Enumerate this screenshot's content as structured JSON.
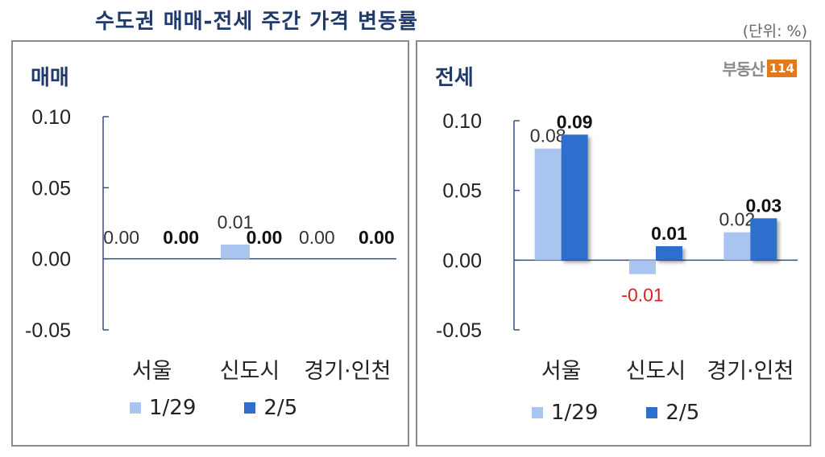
{
  "header": {
    "title": "수도권 매매-전세 주간 가격 변동률",
    "unit": "(단위: %)"
  },
  "logo": {
    "text": "부동산",
    "number": "114"
  },
  "colors": {
    "series1": "#a9c4ef",
    "series2": "#2f6ecc",
    "axis": "#3b4d86",
    "negative": "#e02020",
    "title": "#1f3a6b"
  },
  "chart_data": [
    {
      "type": "bar",
      "title": "매매",
      "categories": [
        "서울",
        "신도시",
        "경기·인천"
      ],
      "series": [
        {
          "name": "1/29",
          "values": [
            0.0,
            0.01,
            0.0
          ],
          "labels": [
            "0.00",
            "0.01",
            "0.00"
          ]
        },
        {
          "name": "2/5",
          "values": [
            0.0,
            0.0,
            0.0
          ],
          "labels": [
            "0.00",
            "0.00",
            "0.00"
          ]
        }
      ],
      "ylim": [
        -0.05,
        0.1
      ],
      "yticks": [
        "0.10",
        "0.05",
        "0.00",
        "-0.05"
      ],
      "grid": false,
      "legend": "bottom"
    },
    {
      "type": "bar",
      "title": "전세",
      "categories": [
        "서울",
        "신도시",
        "경기·인천"
      ],
      "series": [
        {
          "name": "1/29",
          "values": [
            0.08,
            -0.01,
            0.02
          ],
          "labels": [
            "0.08",
            "-0.01",
            "0.02"
          ]
        },
        {
          "name": "2/5",
          "values": [
            0.09,
            0.01,
            0.03
          ],
          "labels": [
            "0.09",
            "0.01",
            "0.03"
          ]
        }
      ],
      "ylim": [
        -0.05,
        0.1
      ],
      "yticks": [
        "0.10",
        "0.05",
        "0.00",
        "-0.05"
      ],
      "grid": false,
      "legend": "bottom"
    }
  ]
}
